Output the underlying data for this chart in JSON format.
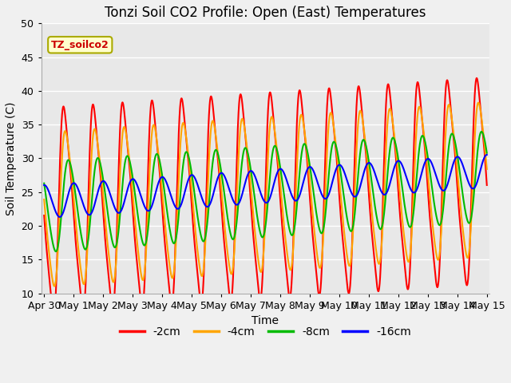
{
  "title": "Tonzi Soil CO2 Profile: Open (East) Temperatures",
  "xlabel": "Time",
  "ylabel": "Soil Temperature (C)",
  "ylim": [
    10,
    50
  ],
  "series": [
    {
      "label": "-2cm",
      "color": "#ff0000"
    },
    {
      "label": "-4cm",
      "color": "#ffa500"
    },
    {
      "label": "-8cm",
      "color": "#00bb00"
    },
    {
      "label": "-16cm",
      "color": "#0000ff"
    }
  ],
  "tick_labels": [
    "Apr 30",
    "May 1",
    "May 2",
    "May 3",
    "May 4",
    "May 5",
    "May 6",
    "May 7",
    "May 8",
    "May 9",
    "May 10",
    "May 11",
    "May 12",
    "May 13",
    "May 14",
    "May 15"
  ],
  "tick_positions": [
    0,
    1,
    2,
    3,
    4,
    5,
    6,
    7,
    8,
    9,
    10,
    11,
    12,
    13,
    14,
    15
  ],
  "annotation_text": "TZ_soilco2",
  "annotation_color": "#cc0000",
  "annotation_bg": "#ffffcc",
  "plot_bg_color": "#e8e8e8",
  "fig_bg_color": "#f0f0f0",
  "grid_color": "#ffffff",
  "linewidth": 1.5
}
